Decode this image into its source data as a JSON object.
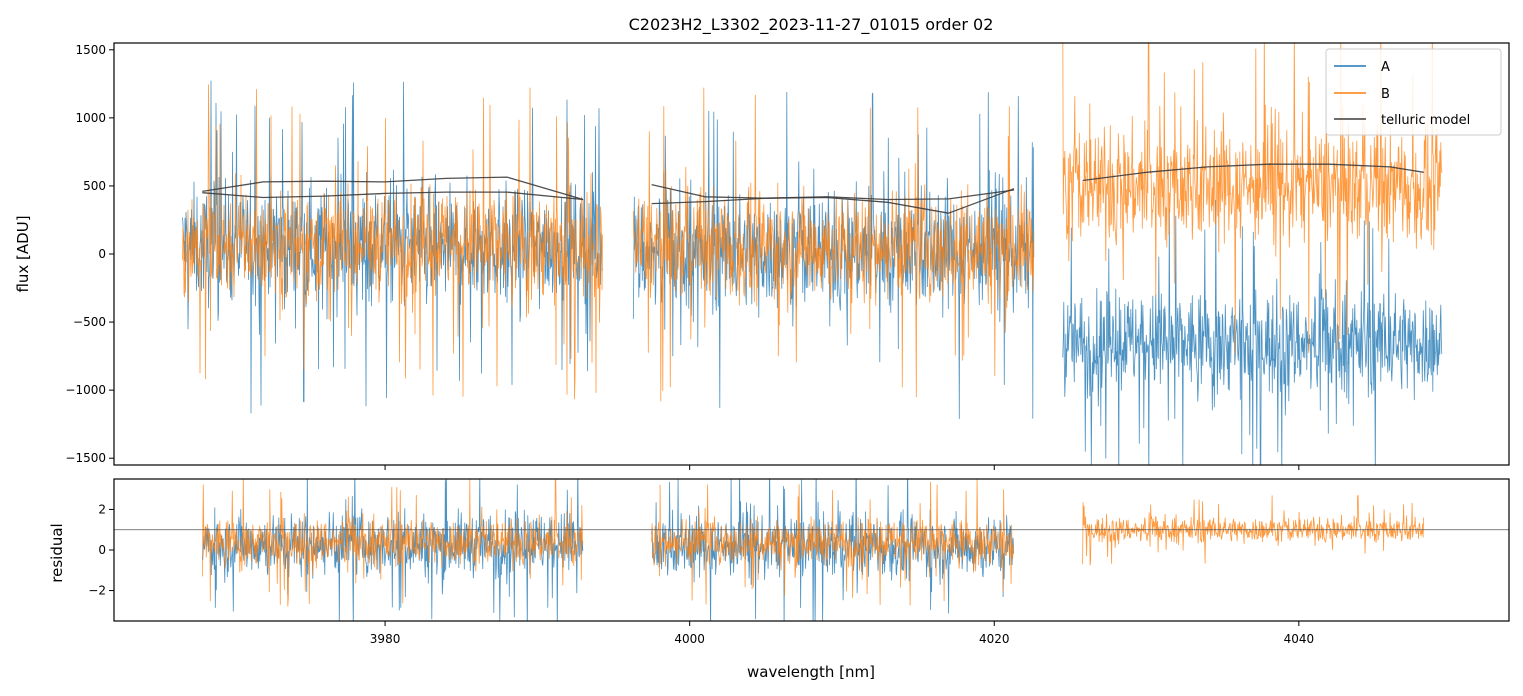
{
  "chart_data": [
    {
      "type": "line",
      "title": "C2023H2_L3302_2023-11-27_01015  order 02",
      "xlabel": "",
      "ylabel": "flux [ADU]",
      "xlim": [
        3962.2,
        4053.8
      ],
      "ylim": [
        -1550,
        1550
      ],
      "yticks": [
        -1500,
        -1000,
        -500,
        0,
        500,
        1000,
        1500
      ],
      "ytick_labels": [
        "−1500",
        "−1000",
        "−500",
        "0",
        "500",
        "1000",
        "1500"
      ],
      "xticks": [
        3980,
        4000,
        4020,
        4040
      ],
      "legend": {
        "position": "top-right",
        "entries": [
          "A",
          "B",
          "telluric model"
        ]
      },
      "segments": [
        {
          "x_range": [
            3966.7,
            3994.3
          ],
          "A_center": 60,
          "A_spread": 380,
          "B_center": 80,
          "B_spread": 360
        },
        {
          "x_range": [
            3996.3,
            4022.6
          ],
          "A_center": 20,
          "A_spread": 380,
          "B_center": 60,
          "B_spread": 360
        },
        {
          "x_range": [
            4024.5,
            4049.4
          ],
          "A_center": -650,
          "A_spread": 330,
          "B_center": 500,
          "B_spread": 380
        }
      ],
      "series": [
        {
          "name": "A",
          "color": "#1f77b4"
        },
        {
          "name": "B",
          "color": "#ff7f0e"
        },
        {
          "name": "telluric model",
          "color": "#3c3c3c",
          "curves": [
            {
              "x": [
                3968,
                3972,
                3976,
                3980,
                3984,
                3988,
                3993
              ],
              "y": [
                460,
                530,
                535,
                530,
                555,
                565,
                400
              ]
            },
            {
              "x": [
                3968,
                3972,
                3976,
                3980,
                3984,
                3988,
                3993
              ],
              "y": [
                450,
                415,
                425,
                445,
                455,
                455,
                400
              ]
            },
            {
              "x": [
                3997.5,
                4001,
                4005,
                4009,
                4013,
                4017,
                4021.3
              ],
              "y": [
                510,
                420,
                410,
                415,
                380,
                300,
                480
              ]
            },
            {
              "x": [
                3997.5,
                4001,
                4005,
                4009,
                4013,
                4017,
                4021.3
              ],
              "y": [
                370,
                385,
                410,
                420,
                400,
                405,
                470
              ]
            },
            {
              "x": [
                4025.8,
                4030,
                4034,
                4038,
                4042,
                4046,
                4048.2
              ],
              "y": [
                540,
                600,
                640,
                660,
                660,
                640,
                600
              ]
            }
          ]
        }
      ]
    },
    {
      "type": "line",
      "title": "",
      "xlabel": "wavelength [nm]",
      "ylabel": "residual",
      "xlim": [
        3962.2,
        4053.8
      ],
      "ylim": [
        -3.5,
        3.5
      ],
      "yticks": [
        -2,
        0,
        2
      ],
      "ytick_labels": [
        "−2",
        "0",
        "2"
      ],
      "xticks": [
        3980,
        4000,
        4020,
        4040
      ],
      "xtick_labels": [
        "3980",
        "4000",
        "4020",
        "4040"
      ],
      "reference_line": 1,
      "segments": [
        {
          "x_range": [
            3968.0,
            3993.0
          ],
          "A_center": 0.3,
          "A_spread": 1.4,
          "B_center": 0.4,
          "B_spread": 1.0
        },
        {
          "x_range": [
            3997.5,
            4021.3
          ],
          "A_center": 0.2,
          "A_spread": 1.4,
          "B_center": 0.4,
          "B_spread": 1.0
        },
        {
          "x_range": [
            4025.8,
            4048.2
          ],
          "A_center": null,
          "A_spread": null,
          "B_center": 1.0,
          "B_spread": 0.55
        }
      ],
      "series": [
        {
          "name": "A",
          "color": "#1f77b4"
        },
        {
          "name": "B",
          "color": "#ff7f0e"
        }
      ]
    }
  ]
}
